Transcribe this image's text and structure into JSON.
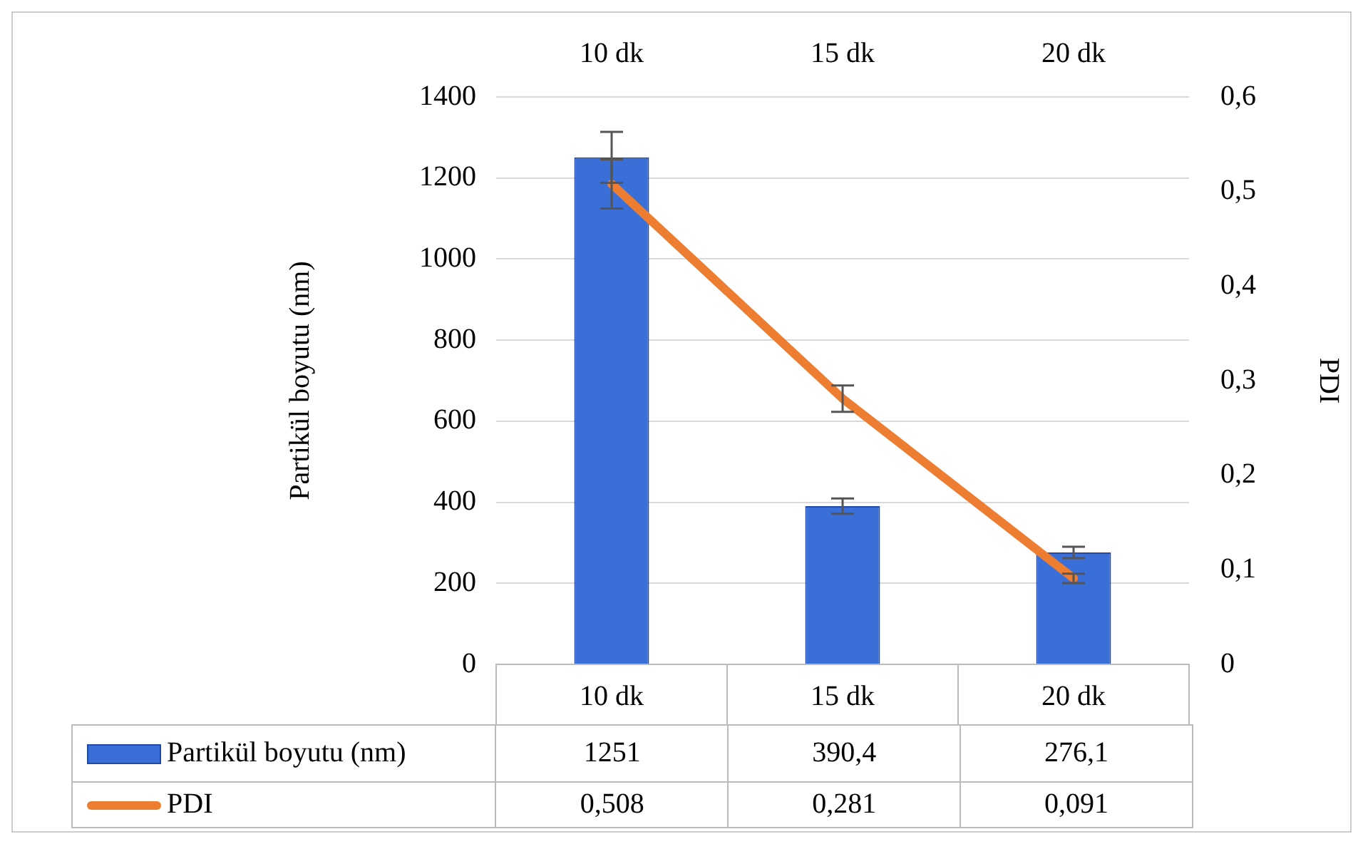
{
  "chart_data": {
    "type": "bar",
    "categories": [
      "10 dk",
      "15 dk",
      "20 dk"
    ],
    "ylabel": "Partikül boyutu (nm)",
    "y2label": "PDI",
    "series": [
      {
        "name": "Partikül boyutu (nm)",
        "color": "#3a6fd8",
        "values": [
          1251,
          390.4,
          276.1
        ],
        "errors": [
          63,
          19,
          14
        ],
        "value_labels": [
          "1251",
          "390,4",
          "276,1"
        ]
      },
      {
        "name": "PDI",
        "type": "line",
        "axis": "y2",
        "color": "#ed7d31",
        "values": [
          0.508,
          0.281,
          0.091
        ],
        "errors": [
          0.026,
          0.014,
          0.005
        ],
        "value_labels": [
          "0,508",
          "0,281",
          "0,091"
        ]
      }
    ],
    "ylim": [
      0,
      1400
    ],
    "yticks": [
      0,
      200,
      400,
      600,
      800,
      1000,
      1200,
      1400
    ],
    "y2lim": [
      0,
      0.6
    ],
    "y2ticks": [
      {
        "value": 0,
        "label": "0"
      },
      {
        "value": 0.1,
        "label": "0,1"
      },
      {
        "value": 0.2,
        "label": "0,2"
      },
      {
        "value": 0.3,
        "label": "0,3"
      },
      {
        "value": 0.4,
        "label": "0,4"
      },
      {
        "value": 0.5,
        "label": "0,5"
      },
      {
        "value": 0.6,
        "label": "0,6"
      }
    ],
    "grid": "y",
    "legend": "bottom",
    "marker": "none"
  }
}
